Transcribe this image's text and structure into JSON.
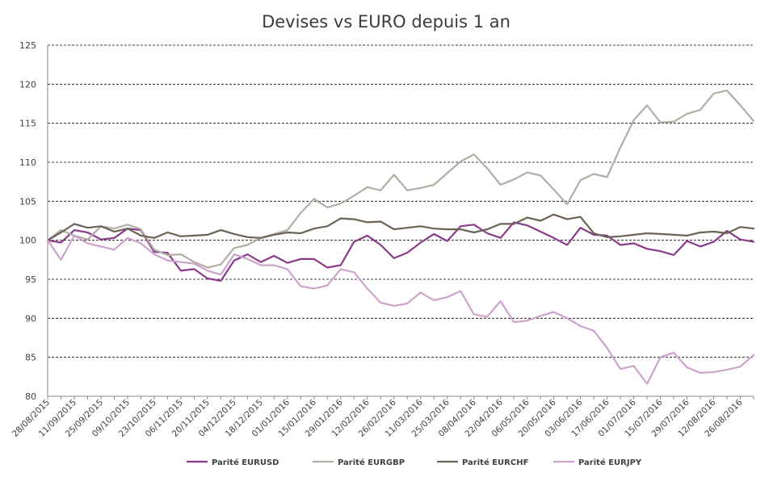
{
  "chart_data": {
    "type": "line",
    "title": "Devises vs EURO depuis 1 an",
    "xlabel": "",
    "ylabel": "",
    "ylim": [
      80,
      125
    ],
    "yticks": [
      80,
      85,
      90,
      95,
      100,
      105,
      110,
      115,
      120,
      125
    ],
    "grid": "horizontal dashed",
    "legend_position": "bottom",
    "x": [
      "28/08/2015",
      "04/09/2015",
      "11/09/2015",
      "18/09/2015",
      "25/09/2015",
      "02/10/2015",
      "09/10/2015",
      "16/10/2015",
      "23/10/2015",
      "30/10/2015",
      "06/11/2015",
      "13/11/2015",
      "20/11/2015",
      "27/11/2015",
      "04/12/2015",
      "11/12/2015",
      "18/12/2015",
      "25/12/2015",
      "01/01/2016",
      "08/01/2016",
      "15/01/2016",
      "22/01/2016",
      "29/01/2016",
      "05/02/2016",
      "12/02/2016",
      "19/02/2016",
      "26/02/2016",
      "04/03/2016",
      "11/03/2016",
      "18/03/2016",
      "25/03/2016",
      "01/04/2016",
      "08/04/2016",
      "15/04/2016",
      "22/04/2016",
      "29/04/2016",
      "06/05/2016",
      "13/05/2016",
      "20/05/2016",
      "27/05/2016",
      "03/06/2016",
      "10/06/2016",
      "17/06/2016",
      "24/06/2016",
      "01/07/2016",
      "08/07/2016",
      "15/07/2016",
      "22/07/2016",
      "29/07/2016",
      "05/08/2016",
      "12/08/2016",
      "19/08/2016",
      "26/08/2016",
      "02/09/2016"
    ],
    "xtick_labels": [
      "28/08/2015",
      "11/09/2015",
      "25/09/2015",
      "09/10/2015",
      "23/10/2015",
      "06/11/2015",
      "20/11/2015",
      "04/12/2015",
      "18/12/2015",
      "01/01/2016",
      "15/01/2016",
      "29/01/2016",
      "12/02/2016",
      "26/02/2016",
      "11/03/2016",
      "25/03/2016",
      "08/04/2016",
      "22/04/2016",
      "06/05/2016",
      "20/05/2016",
      "03/06/2016",
      "17/06/2016",
      "01/07/2016",
      "15/07/2016",
      "29/07/2016",
      "12/08/2016",
      "26/08/2016"
    ],
    "series": [
      {
        "name": "Parité EURUSD",
        "color": "#8b3a8b",
        "values": [
          100,
          99.7,
          101.3,
          101,
          100.1,
          100.3,
          101.5,
          101.3,
          98.5,
          98.4,
          96.1,
          96.3,
          95.1,
          94.8,
          97.4,
          98.2,
          97.2,
          98,
          97.1,
          97.6,
          97.6,
          96.5,
          96.8,
          99.8,
          100.6,
          99.4,
          97.7,
          98.4,
          99.7,
          100.8,
          99.9,
          101.8,
          102,
          100.9,
          100.3,
          102.3,
          101.9,
          101.1,
          100.3,
          99.4,
          101.6,
          100.7,
          100.6,
          99.4,
          99.6,
          98.9,
          98.6,
          98.1,
          99.9,
          99.2,
          99.8,
          101.2,
          100.1,
          99.8
        ]
      },
      {
        "name": "Parité EURGBP",
        "color": "#b3aea5",
        "values": [
          100,
          101.3,
          100.6,
          100.1,
          101.8,
          101.5,
          102,
          101.4,
          98.8,
          98.1,
          98.2,
          97.2,
          96.5,
          96.9,
          99,
          99.4,
          100.3,
          100.8,
          101.3,
          103.5,
          105.3,
          104.2,
          104.7,
          105.7,
          106.8,
          106.4,
          108.4,
          106.4,
          106.7,
          107.1,
          108.6,
          110.1,
          111,
          109.2,
          107.1,
          107.8,
          108.7,
          108.3,
          106.5,
          104.6,
          107.7,
          108.5,
          108.1,
          111.9,
          115.4,
          117.3,
          115.1,
          115.2,
          116.2,
          116.7,
          118.8,
          119.2,
          117.3,
          115.3
        ]
      },
      {
        "name": "Parité EURCHF",
        "color": "#6b6354",
        "values": [
          100,
          101,
          102.1,
          101.6,
          101.8,
          101.1,
          101.5,
          100.6,
          100.3,
          101,
          100.5,
          100.6,
          100.7,
          101.3,
          100.8,
          100.4,
          100.3,
          100.7,
          101,
          100.9,
          101.5,
          101.8,
          102.8,
          102.7,
          102.3,
          102.4,
          101.4,
          101.6,
          101.8,
          101.5,
          101.4,
          101.4,
          101,
          101.4,
          102.1,
          102.1,
          102.9,
          102.5,
          103.3,
          102.7,
          103,
          100.9,
          100.4,
          100.5,
          100.7,
          100.9,
          100.8,
          100.7,
          100.6,
          101,
          101.1,
          100.9,
          101.7,
          101.5
        ]
      },
      {
        "name": "Parité EURJPY",
        "color": "#cca3cc",
        "values": [
          100,
          97.5,
          100.6,
          99.6,
          99.2,
          98.8,
          100.3,
          99.6,
          98.2,
          97.4,
          97.2,
          97,
          96.1,
          95.6,
          98.2,
          97.6,
          96.8,
          96.8,
          96.3,
          94.1,
          93.8,
          94.2,
          96.3,
          95.9,
          93.8,
          92,
          91.6,
          91.9,
          93.3,
          92.3,
          92.7,
          93.5,
          90.5,
          90.2,
          92.2,
          89.5,
          89.7,
          90.3,
          90.8,
          90,
          89,
          88.4,
          86.2,
          83.5,
          83.9,
          81.6,
          85,
          85.6,
          83.7,
          83,
          83.1,
          83.4,
          83.8,
          85.3
        ]
      }
    ]
  }
}
